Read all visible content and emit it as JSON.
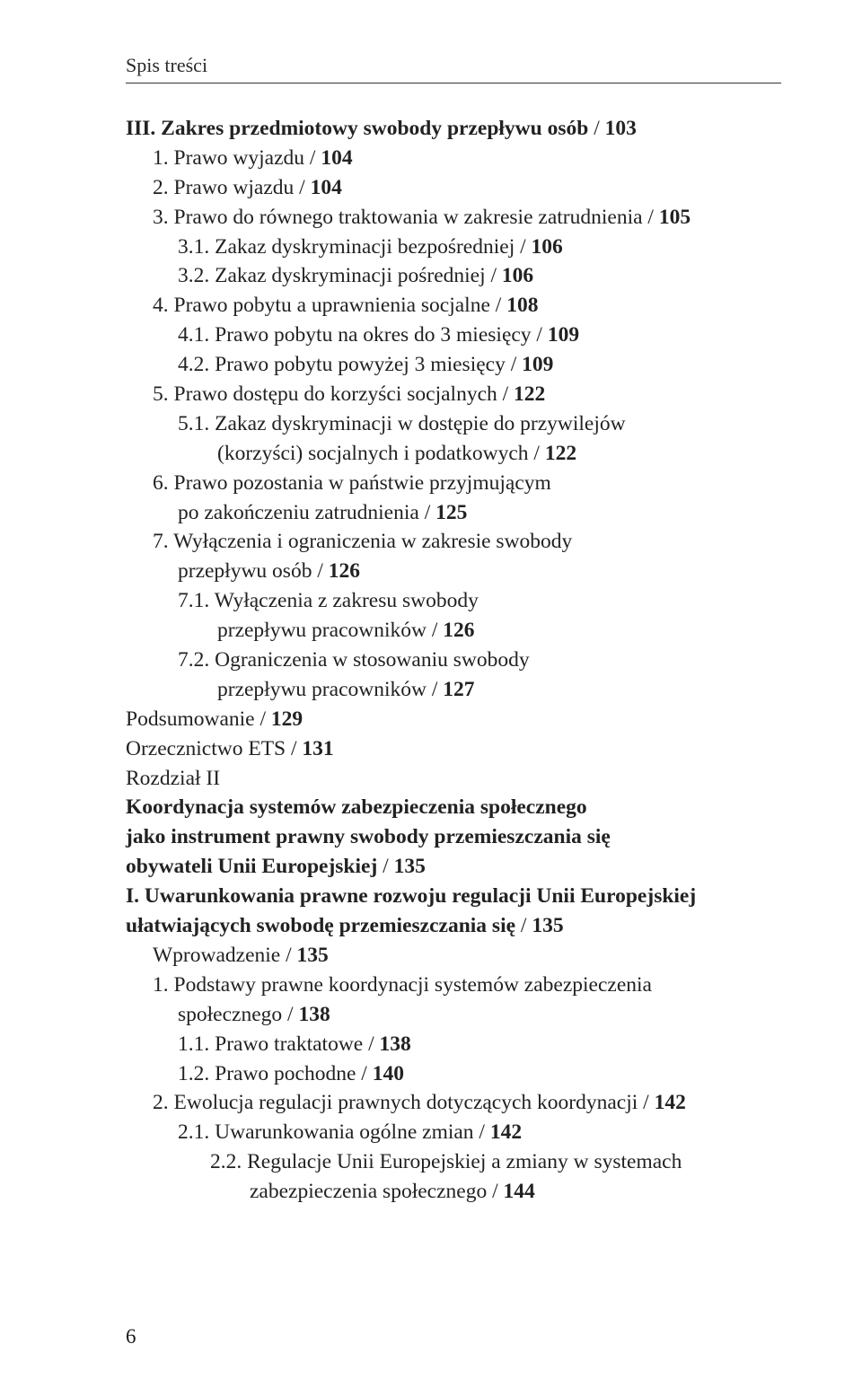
{
  "runningHead": "Spis treści",
  "pageNumber": "6",
  "entries": [
    {
      "cls": "lvl0",
      "html": "<span class='bold'>III. Zakres przedmiotowy swobody przepływu osób</span>  /  <span class='bold'>103</span>"
    },
    {
      "cls": "lvl1",
      "html": "1. Prawo wyjazdu  /  <span class='bold'>104</span>"
    },
    {
      "cls": "lvl1",
      "html": "2. Prawo wjazdu  /  <span class='bold'>104</span>"
    },
    {
      "cls": "lvl1",
      "html": "3. Prawo do równego traktowania w zakresie zatrudnienia  /  <span class='bold'>105</span>"
    },
    {
      "cls": "lvl1b",
      "html": "3.1. Zakaz dyskryminacji bezpośredniej  /  <span class='bold'>106</span>"
    },
    {
      "cls": "lvl1b",
      "html": "3.2. Zakaz dyskryminacji pośredniej  /  <span class='bold'>106</span>"
    },
    {
      "cls": "lvl1",
      "html": "4. Prawo pobytu a uprawnienia socjalne  /  <span class='bold'>108</span>"
    },
    {
      "cls": "lvl1b",
      "html": "4.1. Prawo pobytu na okres do 3 miesięcy  /  <span class='bold'>109</span>"
    },
    {
      "cls": "lvl1b",
      "html": "4.2. Prawo pobytu powyżej 3 miesięcy  /  <span class='bold'>109</span>"
    },
    {
      "cls": "lvl1",
      "html": "5. Prawo dostępu do korzyści socjalnych  /  <span class='bold'>122</span>"
    },
    {
      "cls": "lvl1b",
      "html": "5.1. Zakaz dyskryminacji w dostępie do przywilejów"
    },
    {
      "cls": "lvl2",
      "html": "(korzyści) socjalnych i podatkowych  /  <span class='bold'>122</span>"
    },
    {
      "cls": "lvl1",
      "html": "6. Prawo pozostania w państwie przyjmującym"
    },
    {
      "cls": "lvl1b",
      "html": "po zakończeniu zatrudnienia  /  <span class='bold'>125</span>"
    },
    {
      "cls": "lvl1",
      "html": "7. Wyłączenia i ograniczenia w zakresie swobody"
    },
    {
      "cls": "lvl1b",
      "html": "przepływu osób  /  <span class='bold'>126</span>"
    },
    {
      "cls": "lvl1b",
      "html": "7.1. Wyłączenia z zakresu swobody"
    },
    {
      "cls": "lvl2",
      "html": "przepływu pracowników  /  <span class='bold'>126</span>"
    },
    {
      "cls": "lvl1b",
      "html": "7.2. Ograniczenia w stosowaniu swobody"
    },
    {
      "cls": "lvl2",
      "html": "przepływu pracowników  /  <span class='bold'>127</span>"
    },
    {
      "cls": "lvl0",
      "html": "Podsumowanie  /  <span class='bold'>129</span>"
    },
    {
      "cls": "lvl0",
      "html": "Orzecznictwo ETS  /  <span class='bold'>131</span>"
    },
    {
      "cls": "lvl0 secblock",
      "html": "Rozdział II"
    },
    {
      "cls": "lvl0",
      "html": "<span class='bold'>Koordynacja systemów zabezpieczenia społecznego</span>"
    },
    {
      "cls": "lvl0",
      "html": "<span class='bold'>jako instrument prawny swobody przemieszczania się</span>"
    },
    {
      "cls": "lvl0",
      "html": "<span class='bold'>obywateli Unii Europejskiej</span>  /  <span class='bold'>135</span>"
    },
    {
      "cls": "lvl0",
      "html": "<span class='bold'>I. Uwarunkowania prawne rozwoju regulacji Unii Europejskiej</span>"
    },
    {
      "cls": "lvl0",
      "html": "<span class='bold'>ułatwiających swobodę przemieszczania się</span>  /  <span class='bold'>135</span>"
    },
    {
      "cls": "lvl1",
      "html": "Wprowadzenie  /  <span class='bold'>135</span>"
    },
    {
      "cls": "lvl1",
      "html": "1. Podstawy prawne koordynacji systemów zabezpieczenia"
    },
    {
      "cls": "lvl1b",
      "html": "społecznego  /  <span class='bold'>138</span>"
    },
    {
      "cls": "lvl1b",
      "html": "1.1. Prawo traktatowe  /  <span class='bold'>138</span>"
    },
    {
      "cls": "lvl1b",
      "html": "1.2. Prawo pochodne  /  <span class='bold'>140</span>"
    },
    {
      "cls": "lvl1",
      "html": "2. Ewolucja regulacji prawnych dotyczących koordynacji  /  <span class='bold'>142</span>"
    },
    {
      "cls": "lvl1b",
      "html": "2.1. Uwarunkowania ogólne zmian  /  <span class='bold'>142</span>"
    },
    {
      "cls": "lvl2-hang",
      "html": "2.2. Regulacje Unii Europejskiej a zmiany w systemach zabezpieczenia społecznego  /  <span class='bold'>144</span>"
    }
  ]
}
